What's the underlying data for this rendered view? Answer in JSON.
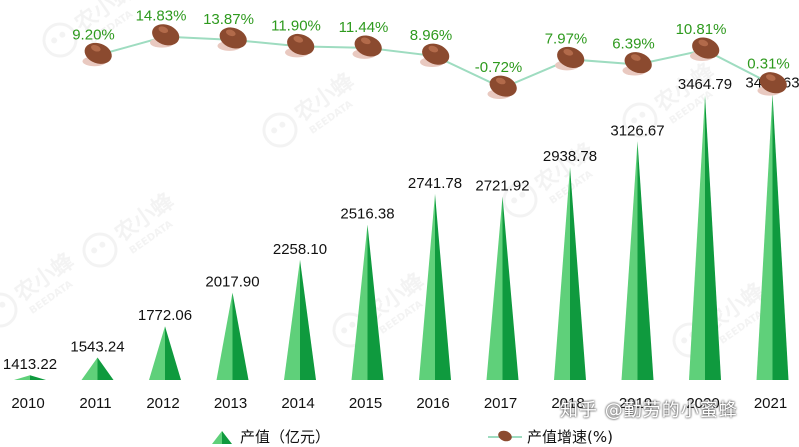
{
  "chart_data": {
    "type": "bar",
    "categories": [
      "2010",
      "2011",
      "2012",
      "2013",
      "2014",
      "2015",
      "2016",
      "2017",
      "2018",
      "2019",
      "2020",
      "2021"
    ],
    "series": [
      {
        "name": "产值（亿元）",
        "type": "bar",
        "values": [
          1413.22,
          1543.24,
          1772.06,
          2017.9,
          2258.1,
          2516.38,
          2741.78,
          2721.92,
          2938.78,
          3126.67,
          3464.79,
          3475.63
        ],
        "labels": [
          "1413.22",
          "1543.24",
          "1772.06",
          "2017.90",
          "2258.10",
          "2516.38",
          "2741.78",
          "2721.92",
          "2938.78",
          "3126.67",
          "3464.79",
          "3475.63"
        ],
        "color": "#1faa4b"
      },
      {
        "name": "产值增速(%)",
        "type": "line",
        "values": [
          9.2,
          14.83,
          13.87,
          11.9,
          11.44,
          8.96,
          -0.72,
          7.97,
          6.39,
          10.81,
          0.31
        ],
        "labels": [
          "9.20%",
          "14.83%",
          "13.87%",
          "11.90%",
          "11.44%",
          "8.96%",
          "-0.72%",
          "7.97%",
          "6.39%",
          "10.81%",
          "0.31%"
        ],
        "x": [
          "2011",
          "2012",
          "2013",
          "2014",
          "2015",
          "2016",
          "2017",
          "2018",
          "2019",
          "2020",
          "2021"
        ],
        "color": "#9edcc0"
      }
    ],
    "label_color": "#2e9a1e",
    "marker_color": "#8b4a2f",
    "legend_position": "bottom"
  },
  "watermark": {
    "site_text": "知乎 @勤劳的小蜜蜂",
    "logo_text": "农小蜂",
    "logo_sub": "BEEDATA"
  }
}
